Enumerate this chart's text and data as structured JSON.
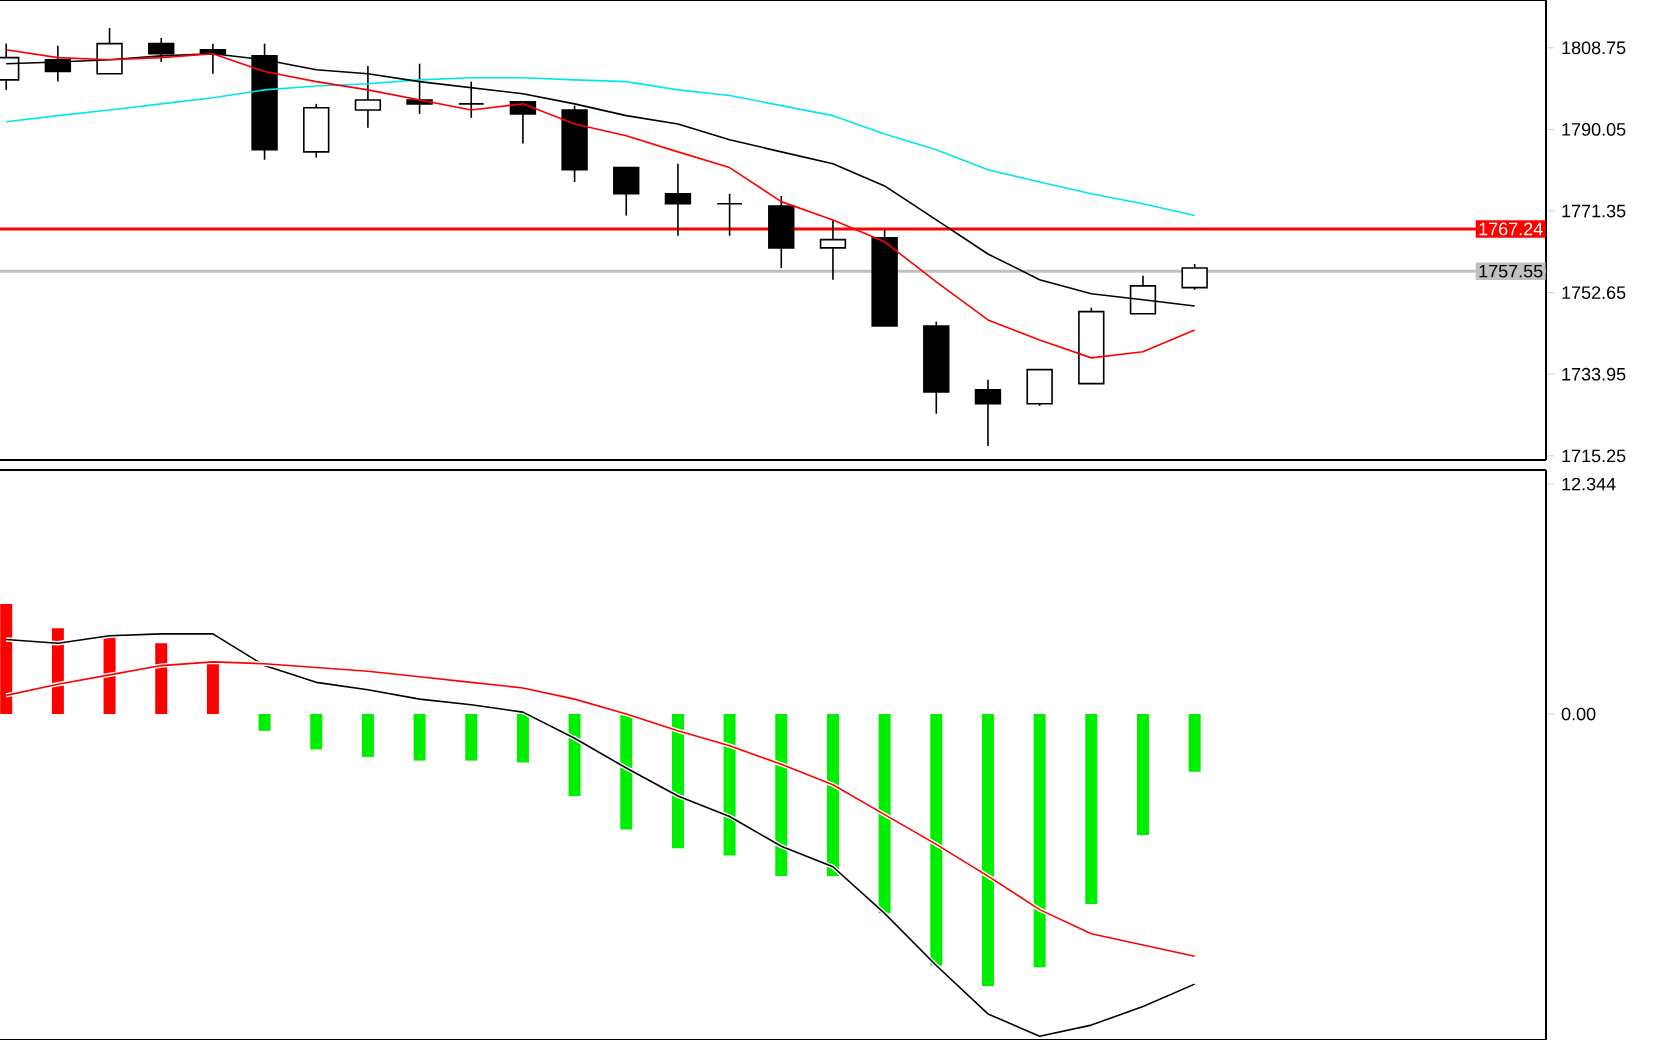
{
  "chart_data": [
    {
      "type": "candlestick",
      "categories": [
        null,
        null,
        null,
        null,
        null,
        null,
        null,
        null,
        null,
        null,
        null,
        null,
        null,
        null,
        null,
        null,
        null,
        null,
        null,
        null,
        null,
        null,
        null,
        null
      ],
      "ohlc": [
        [
          1801.4,
          1809.7,
          1799.1,
          1806.5
        ],
        [
          1806.0,
          1809.2,
          1801.0,
          1803.3
        ],
        [
          1802.8,
          1813.3,
          1802.8,
          1809.7
        ],
        [
          1809.7,
          1811.0,
          1805.5,
          1807.4
        ],
        [
          1808.3,
          1809.7,
          1802.8,
          1807.4
        ],
        [
          1806.9,
          1809.7,
          1783.1,
          1785.4
        ],
        [
          1784.9,
          1795.9,
          1783.6,
          1795.0
        ],
        [
          1794.5,
          1804.6,
          1790.4,
          1796.8
        ],
        [
          1796.8,
          1805.1,
          1793.6,
          1795.9
        ],
        [
          1795.9,
          1801.0,
          1792.7,
          1795.9
        ],
        [
          1796.4,
          1796.4,
          1786.8,
          1793.6
        ],
        [
          1794.5,
          1795.5,
          1778.0,
          1780.8
        ],
        [
          1781.3,
          1781.3,
          1770.3,
          1775.3
        ],
        [
          1775.3,
          1782.2,
          1765.7,
          1773.0
        ],
        [
          1773.0,
          1775.3,
          1765.7,
          1773.0
        ],
        [
          1772.5,
          1774.8,
          1758.3,
          1762.9
        ],
        [
          1762.9,
          1769.3,
          1755.6,
          1764.8
        ],
        [
          1765.2,
          1767.0,
          1745.0,
          1745.0
        ],
        [
          1745.0,
          1746.0,
          1724.9,
          1729.9
        ],
        [
          1730.4,
          1732.7,
          1717.5,
          1727.2
        ],
        [
          1727.2,
          1735.0,
          1726.7,
          1735.0
        ],
        [
          1731.8,
          1749.2,
          1731.8,
          1748.3
        ],
        [
          1747.8,
          1756.5,
          1747.8,
          1754.2
        ],
        [
          1753.8,
          1759.2,
          1753.3,
          1758.3
        ]
      ],
      "series": [
        {
          "type": "line",
          "color": "#00e5ee",
          "values": [
            1791.8,
            1793.2,
            1794.5,
            1795.9,
            1797.3,
            1799.1,
            1800.0,
            1800.5,
            1801.4,
            1801.9,
            1801.9,
            1801.4,
            1801.0,
            1799.1,
            1797.8,
            1795.5,
            1793.2,
            1789.0,
            1785.4,
            1780.8,
            1778.0,
            1775.3,
            1773.0,
            1770.3
          ]
        },
        {
          "type": "line",
          "color": "#000000",
          "values": [
            1805.1,
            1805.5,
            1806.0,
            1806.9,
            1807.4,
            1806.0,
            1803.7,
            1802.8,
            1801.0,
            1799.6,
            1798.2,
            1795.9,
            1793.2,
            1791.3,
            1787.7,
            1784.9,
            1782.2,
            1777.1,
            1769.3,
            1761.5,
            1755.6,
            1752.4,
            1751.0,
            1749.6
          ]
        },
        {
          "type": "line",
          "color": "#ff0000",
          "values": [
            1808.3,
            1806.5,
            1806.0,
            1806.5,
            1807.4,
            1803.3,
            1801.0,
            1799.1,
            1796.8,
            1794.5,
            1795.9,
            1791.3,
            1788.6,
            1784.9,
            1781.3,
            1773.5,
            1769.3,
            1764.3,
            1755.1,
            1746.4,
            1741.8,
            1737.7,
            1739.1,
            1744.1
          ]
        }
      ],
      "ylim": [
        1714.3,
        1819.7
      ],
      "yticks": [
        1715.25,
        1733.95,
        1752.65,
        1771.35,
        1790.05,
        1808.75
      ],
      "ref_lines": [
        {
          "axis": "y",
          "value": 1767.24,
          "label": "1767.24",
          "color": "#ff0000"
        },
        {
          "axis": "y",
          "value": 1757.55,
          "label": "1757.55",
          "color": "#c0c0c0"
        }
      ],
      "tick_labels": "y"
    },
    {
      "type": "bar",
      "categories": [
        null,
        null,
        null,
        null,
        null,
        null,
        null,
        null,
        null,
        null,
        null,
        null,
        null,
        null,
        null,
        null,
        null,
        null,
        null,
        null,
        null,
        null,
        null,
        null
      ],
      "series": [
        {
          "type": "bar",
          "values": [
            5.9,
            4.6,
            4.3,
            3.8,
            2.9,
            -0.9,
            -1.9,
            -2.3,
            -2.5,
            -2.5,
            -2.6,
            -4.4,
            -6.2,
            -7.2,
            -7.6,
            -8.7,
            -8.7,
            -10.7,
            -13.5,
            -14.6,
            -13.6,
            -10.2,
            -6.5,
            -3.1
          ],
          "colors": [
            "#ff0000",
            "#ff0000",
            "#ff0000",
            "#ff0000",
            "#ff0000",
            "#00ee00",
            "#00ee00",
            "#00ee00",
            "#00ee00",
            "#00ee00",
            "#00ee00",
            "#00ee00",
            "#00ee00",
            "#00ee00",
            "#00ee00",
            "#00ee00",
            "#00ee00",
            "#00ee00",
            "#00ee00",
            "#00ee00",
            "#00ee00",
            "#00ee00",
            "#00ee00",
            "#00ee00"
          ]
        },
        {
          "type": "line",
          "color": "#000000",
          "values": [
            4.0,
            3.8,
            4.2,
            4.3,
            4.3,
            2.6,
            1.7,
            1.3,
            0.8,
            0.5,
            0.1,
            -1.3,
            -2.9,
            -4.4,
            -5.5,
            -7.1,
            -8.2,
            -10.7,
            -13.5,
            -16.1,
            -17.3,
            -16.7,
            -15.7,
            -14.5
          ]
        },
        {
          "type": "line",
          "color": "#ff0000",
          "values": [
            1.0,
            1.6,
            2.1,
            2.6,
            2.8,
            2.7,
            2.5,
            2.3,
            2.0,
            1.7,
            1.4,
            0.8,
            0.0,
            -0.9,
            -1.7,
            -2.7,
            -3.8,
            -5.4,
            -7.0,
            -8.7,
            -10.5,
            -11.8,
            -12.4,
            -13.0
          ]
        }
      ],
      "ylim": [
        -17.5,
        13.1
      ],
      "yticks": [
        {
          "value": 0,
          "label": "0.00"
        },
        12.344
      ],
      "tick_labels": "y"
    }
  ]
}
